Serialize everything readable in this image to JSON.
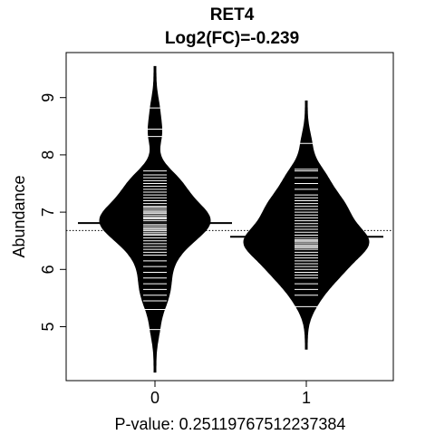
{
  "chart_data": {
    "type": "beanplot",
    "title": "RET4",
    "subtitle": "Log2(FC)=-0.239",
    "ylabel": "Abundance",
    "footer": "P-value: 0.25119767512237384",
    "categories": [
      "0",
      "1"
    ],
    "ylim": [
      4.1,
      9.8
    ],
    "yticks": [
      5,
      6,
      7,
      8,
      9
    ],
    "overall_mean": 6.68,
    "groups": [
      {
        "name": "0",
        "mean": 6.81,
        "min": 4.2,
        "max": 9.55,
        "mode": 6.9,
        "observations": [
          4.95,
          5.3,
          5.45,
          5.55,
          5.65,
          5.75,
          5.85,
          5.95,
          6.05,
          6.15,
          6.25,
          6.3,
          6.35,
          6.4,
          6.45,
          6.5,
          6.55,
          6.6,
          6.62,
          6.65,
          6.68,
          6.7,
          6.72,
          6.75,
          6.78,
          6.8,
          6.82,
          6.85,
          6.88,
          6.9,
          6.92,
          6.95,
          6.98,
          7.0,
          7.02,
          7.05,
          7.08,
          7.1,
          7.15,
          7.2,
          7.25,
          7.3,
          7.35,
          7.4,
          7.45,
          7.5,
          7.55,
          7.6,
          7.65,
          7.72,
          8.32,
          8.45,
          8.82
        ]
      },
      {
        "name": "1",
        "mean": 6.57,
        "min": 4.6,
        "max": 8.95,
        "mode": 6.5,
        "observations": [
          5.35,
          5.55,
          5.65,
          5.75,
          5.85,
          5.9,
          5.95,
          6.0,
          6.05,
          6.1,
          6.15,
          6.2,
          6.25,
          6.3,
          6.35,
          6.38,
          6.4,
          6.42,
          6.45,
          6.48,
          6.5,
          6.52,
          6.55,
          6.58,
          6.6,
          6.65,
          6.7,
          6.75,
          6.8,
          6.85,
          6.9,
          6.95,
          7.0,
          7.05,
          7.1,
          7.15,
          7.2,
          7.25,
          7.3,
          7.4,
          7.5,
          7.6,
          7.72,
          7.75,
          8.2
        ]
      }
    ],
    "colors": {
      "bean": "#000000",
      "line": "#ffffff",
      "background": "#ffffff"
    }
  }
}
